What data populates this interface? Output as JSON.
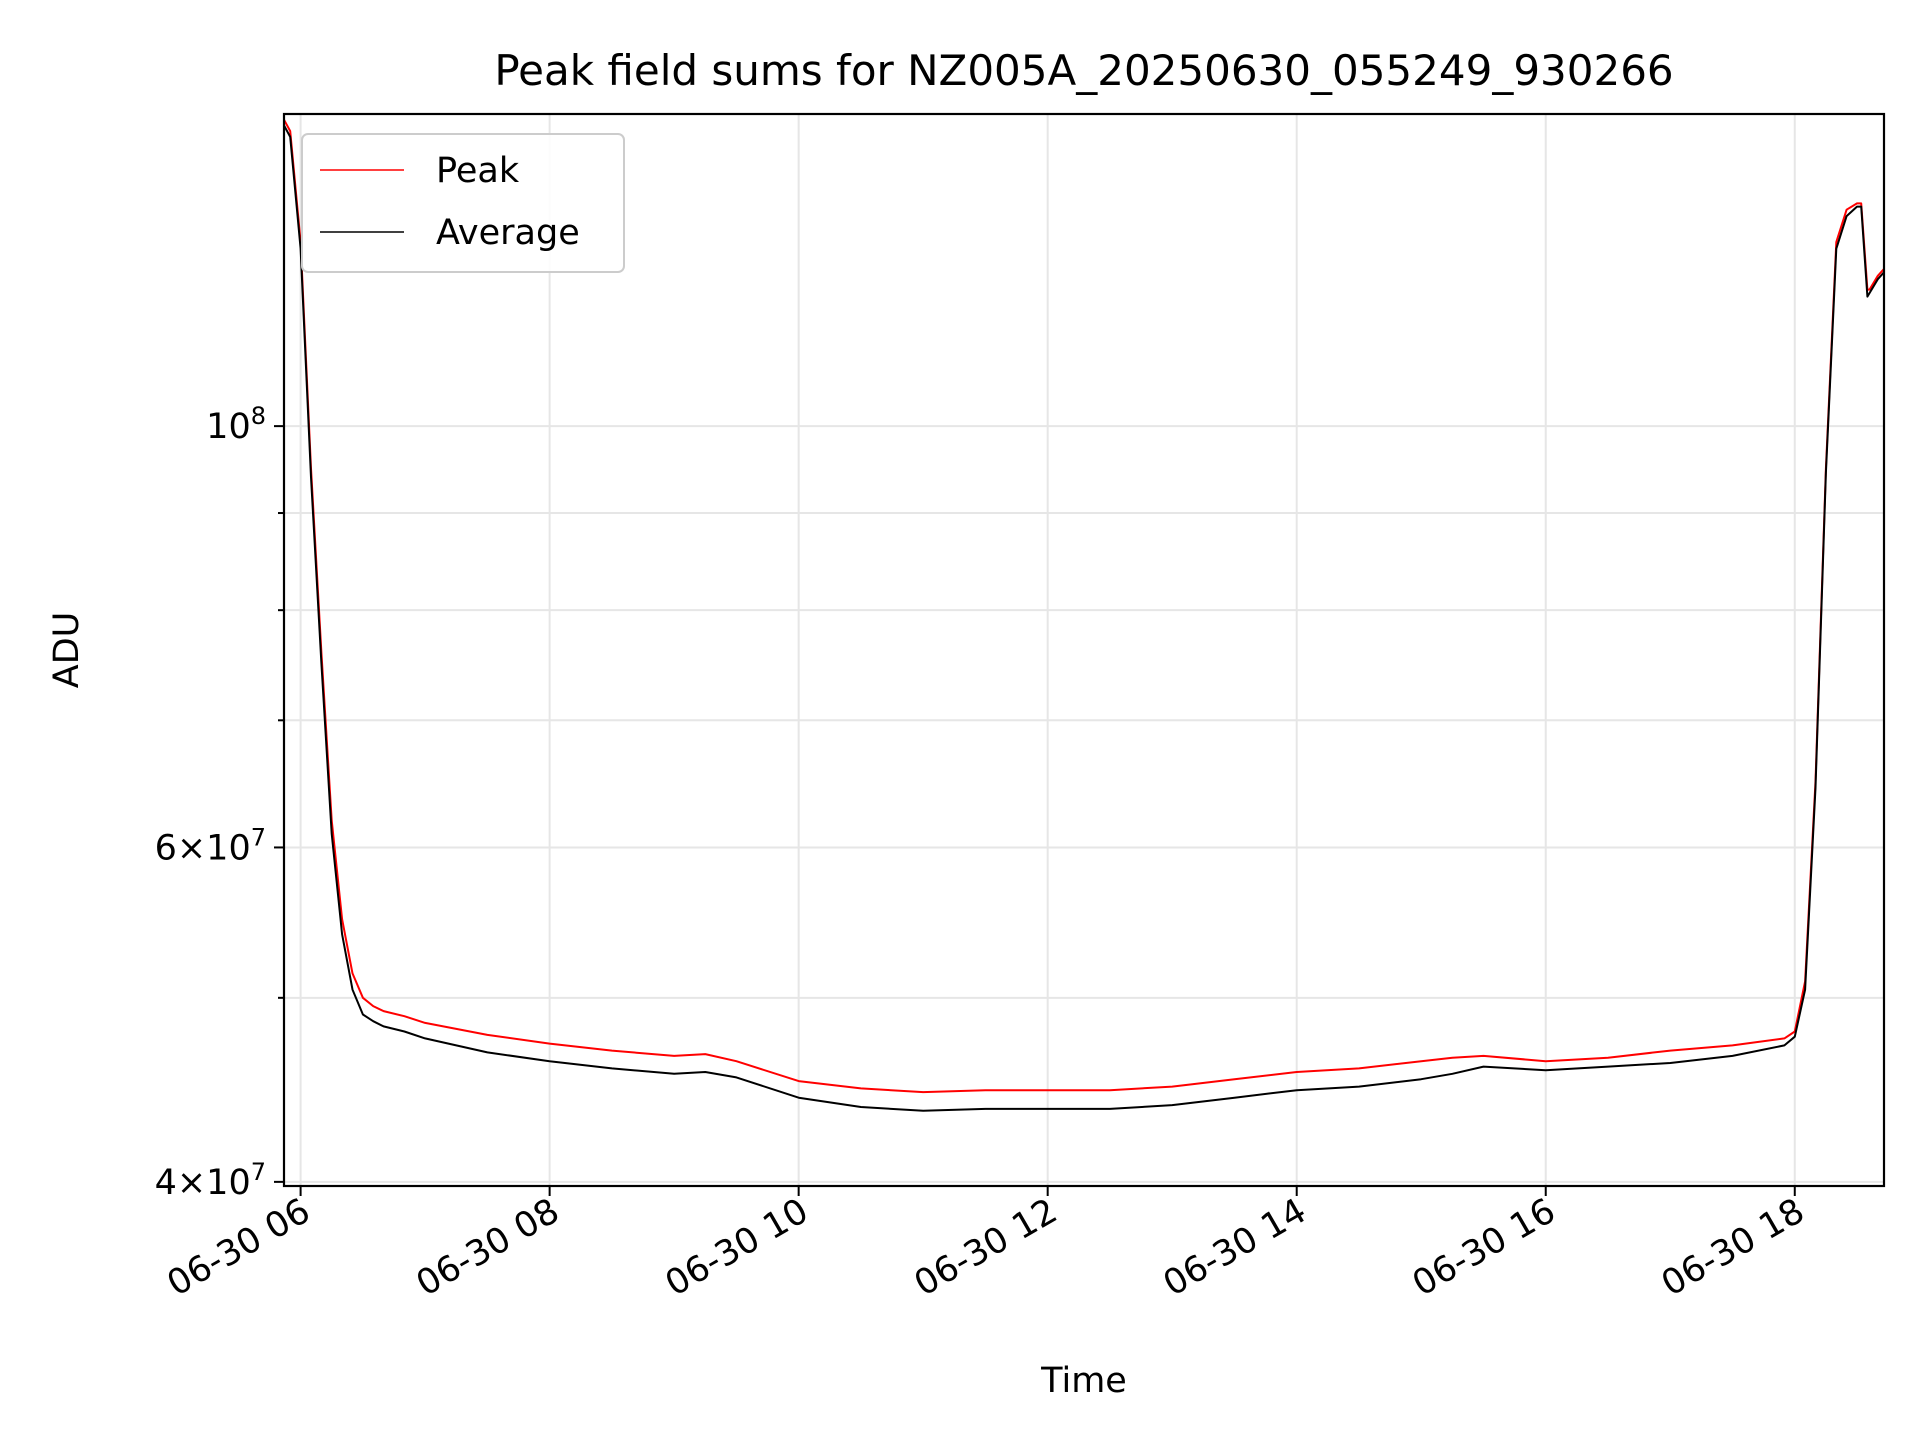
{
  "chart_data": {
    "type": "line",
    "title": "Peak field sums for NZ005A_20250630_055249_930266",
    "xlabel": "Time",
    "ylabel": "ADU",
    "yscale": "log",
    "ylim": [
      39800000,
      146000000
    ],
    "xlim": [
      "2025-06-30 05:52",
      "2025-06-30 18:43"
    ],
    "x_ticks": [
      {
        "value": "2025-06-30 06:00",
        "label": "06-30 06"
      },
      {
        "value": "2025-06-30 08:00",
        "label": "06-30 08"
      },
      {
        "value": "2025-06-30 10:00",
        "label": "06-30 10"
      },
      {
        "value": "2025-06-30 12:00",
        "label": "06-30 12"
      },
      {
        "value": "2025-06-30 14:00",
        "label": "06-30 14"
      },
      {
        "value": "2025-06-30 16:00",
        "label": "06-30 16"
      },
      {
        "value": "2025-06-30 18:00",
        "label": "06-30 18"
      }
    ],
    "y_major_ticks": [
      {
        "value": 40000000,
        "mantissa": "4",
        "exponent": "7"
      },
      {
        "value": 60000000,
        "mantissa": "6",
        "exponent": "7"
      },
      {
        "value": 100000000,
        "mantissa": "",
        "exponent": "8"
      }
    ],
    "y_minor_ticks": [
      50000000,
      70000000,
      80000000,
      90000000
    ],
    "grid": true,
    "legend_position": "top-left",
    "series": [
      {
        "name": "Peak",
        "color": "#ff0000",
        "x": [
          "2025-06-30 05:52",
          "2025-06-30 05:55",
          "2025-06-30 06:00",
          "2025-06-30 06:05",
          "2025-06-30 06:10",
          "2025-06-30 06:15",
          "2025-06-30 06:20",
          "2025-06-30 06:25",
          "2025-06-30 06:30",
          "2025-06-30 06:35",
          "2025-06-30 06:40",
          "2025-06-30 06:50",
          "2025-06-30 07:00",
          "2025-06-30 07:30",
          "2025-06-30 08:00",
          "2025-06-30 08:30",
          "2025-06-30 09:00",
          "2025-06-30 09:15",
          "2025-06-30 09:30",
          "2025-06-30 10:00",
          "2025-06-30 10:30",
          "2025-06-30 11:00",
          "2025-06-30 11:30",
          "2025-06-30 12:00",
          "2025-06-30 12:30",
          "2025-06-30 13:00",
          "2025-06-30 13:30",
          "2025-06-30 14:00",
          "2025-06-30 14:30",
          "2025-06-30 15:00",
          "2025-06-30 15:15",
          "2025-06-30 15:30",
          "2025-06-30 16:00",
          "2025-06-30 16:30",
          "2025-06-30 17:00",
          "2025-06-30 17:30",
          "2025-06-30 17:55",
          "2025-06-30 18:00",
          "2025-06-30 18:05",
          "2025-06-30 18:10",
          "2025-06-30 18:15",
          "2025-06-30 18:20",
          "2025-06-30 18:25",
          "2025-06-30 18:30",
          "2025-06-30 18:32",
          "2025-06-30 18:35",
          "2025-06-30 18:36",
          "2025-06-30 18:40",
          "2025-06-30 18:43"
        ],
        "values": [
          145000000,
          143000000,
          125000000,
          95000000,
          76000000,
          62000000,
          55000000,
          51500000,
          50000000,
          49500000,
          49200000,
          48900000,
          48500000,
          47800000,
          47300000,
          46900000,
          46600000,
          46700000,
          46300000,
          45200000,
          44800000,
          44600000,
          44700000,
          44700000,
          44700000,
          44900000,
          45300000,
          45700000,
          45900000,
          46300000,
          46500000,
          46600000,
          46300000,
          46500000,
          46900000,
          47200000,
          47600000,
          48000000,
          51000000,
          65000000,
          95000000,
          125000000,
          130000000,
          131000000,
          131000000,
          118000000,
          118000000,
          120000000,
          121000000
        ]
      },
      {
        "name": "Average",
        "color": "#000000",
        "x": [
          "2025-06-30 05:52",
          "2025-06-30 05:55",
          "2025-06-30 06:00",
          "2025-06-30 06:05",
          "2025-06-30 06:10",
          "2025-06-30 06:15",
          "2025-06-30 06:20",
          "2025-06-30 06:25",
          "2025-06-30 06:30",
          "2025-06-30 06:35",
          "2025-06-30 06:40",
          "2025-06-30 06:50",
          "2025-06-30 07:00",
          "2025-06-30 07:30",
          "2025-06-30 08:00",
          "2025-06-30 08:30",
          "2025-06-30 09:00",
          "2025-06-30 09:15",
          "2025-06-30 09:30",
          "2025-06-30 10:00",
          "2025-06-30 10:30",
          "2025-06-30 11:00",
          "2025-06-30 11:30",
          "2025-06-30 12:00",
          "2025-06-30 12:30",
          "2025-06-30 13:00",
          "2025-06-30 13:30",
          "2025-06-30 14:00",
          "2025-06-30 14:30",
          "2025-06-30 15:00",
          "2025-06-30 15:15",
          "2025-06-30 15:30",
          "2025-06-30 16:00",
          "2025-06-30 16:30",
          "2025-06-30 17:00",
          "2025-06-30 17:30",
          "2025-06-30 17:55",
          "2025-06-30 18:00",
          "2025-06-30 18:05",
          "2025-06-30 18:10",
          "2025-06-30 18:15",
          "2025-06-30 18:20",
          "2025-06-30 18:25",
          "2025-06-30 18:30",
          "2025-06-30 18:32",
          "2025-06-30 18:35",
          "2025-06-30 18:36",
          "2025-06-30 18:40",
          "2025-06-30 18:43"
        ],
        "values": [
          144000000,
          142000000,
          124000000,
          94000000,
          75000000,
          61000000,
          54000000,
          50500000,
          49000000,
          48600000,
          48300000,
          48000000,
          47600000,
          46800000,
          46300000,
          45900000,
          45600000,
          45700000,
          45400000,
          44300000,
          43800000,
          43600000,
          43700000,
          43700000,
          43700000,
          43900000,
          44300000,
          44700000,
          44900000,
          45300000,
          45600000,
          46000000,
          45800000,
          46000000,
          46200000,
          46600000,
          47200000,
          47700000,
          50500000,
          64500000,
          94500000,
          124000000,
          129000000,
          130500000,
          130500000,
          117000000,
          117500000,
          119500000,
          120500000
        ]
      }
    ]
  }
}
